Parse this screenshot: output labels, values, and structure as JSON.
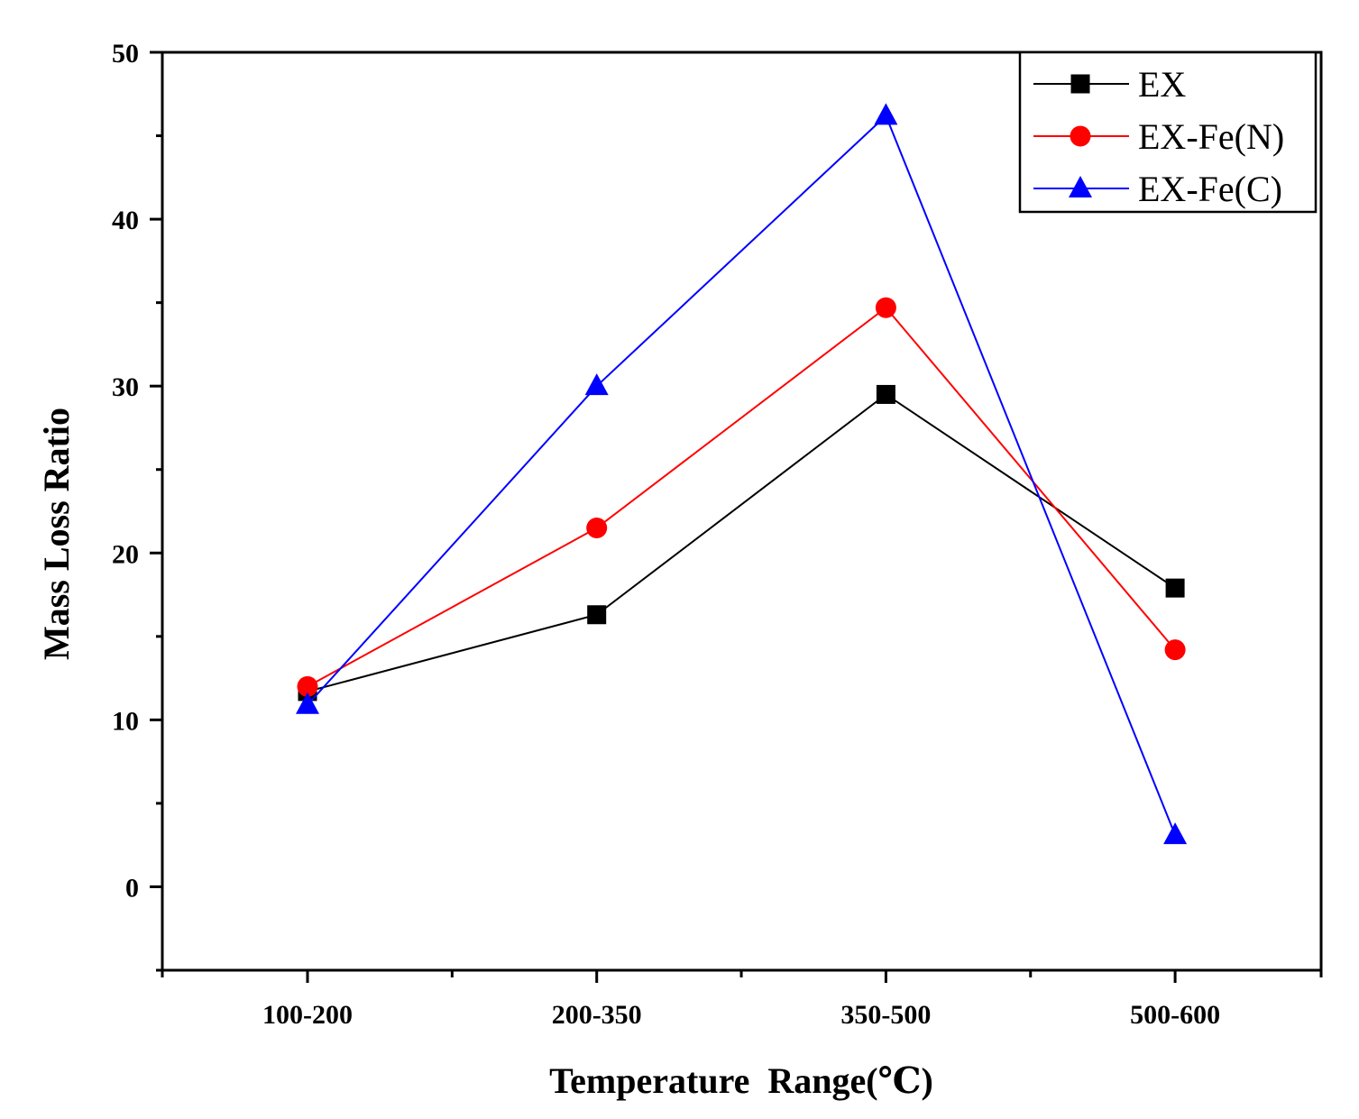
{
  "chart_data": {
    "type": "line",
    "title": "",
    "xlabel": "Temperature  Range(℃)",
    "ylabel": "Mass Loss Ratio",
    "categories": [
      "100-200",
      "200-350",
      "350-500",
      "500-600"
    ],
    "ylim": [
      -5,
      50
    ],
    "yticks": [
      0,
      10,
      20,
      30,
      40,
      50
    ],
    "ytick_labels": [
      "0",
      "10",
      "20",
      "30",
      "40",
      "50"
    ],
    "grid": false,
    "legend_position": "top-right",
    "series": [
      {
        "name": "EX",
        "color": "#000000",
        "marker": "square",
        "values": [
          11.7,
          16.3,
          29.5,
          17.9
        ]
      },
      {
        "name": "EX-Fe(N)",
        "color": "#ff0000",
        "marker": "circle",
        "values": [
          12.0,
          21.5,
          34.7,
          14.2
        ]
      },
      {
        "name": "EX-Fe(C)",
        "color": "#0000ff",
        "marker": "triangle",
        "values": [
          10.9,
          30.0,
          46.2,
          3.1
        ]
      }
    ]
  }
}
